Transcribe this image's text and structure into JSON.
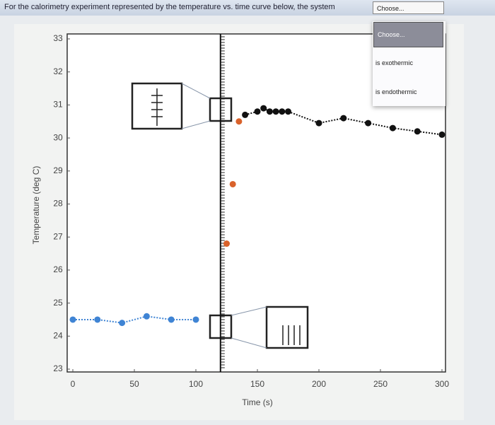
{
  "question": {
    "text": "For the calorimetry experiment represented by the temperature vs. time curve below, the system",
    "select": "Choose...",
    "options": [
      "Choose...",
      "is exothermic",
      "is endothermic"
    ]
  },
  "chart_data": {
    "type": "scatter",
    "x_label": "Time (s)",
    "y_label": "Temperature (deg C)",
    "xlim": [
      0,
      300
    ],
    "ylim": [
      23,
      33
    ],
    "xticks": [
      0,
      50,
      100,
      150,
      200,
      250,
      300
    ],
    "yticks": [
      23,
      24,
      25,
      26,
      27,
      28,
      29,
      30,
      31,
      32,
      33
    ],
    "vline": 120,
    "series": [
      {
        "color": "#3f84d4",
        "dotted": true,
        "x": [
          0,
          20,
          40,
          60,
          80,
          100
        ],
        "values": [
          24.5,
          24.5,
          24.4,
          24.6,
          24.5,
          24.5
        ]
      },
      {
        "color": "#d9622b",
        "dotted": false,
        "x": [
          125,
          130,
          135
        ],
        "values": [
          26.8,
          28.6,
          30.5
        ]
      },
      {
        "color": "#111111",
        "dotted": true,
        "x": [
          140,
          150,
          155,
          160,
          165,
          170,
          175,
          200,
          220,
          240,
          260,
          280,
          300
        ],
        "values": [
          30.7,
          30.8,
          30.9,
          30.8,
          30.8,
          30.8,
          30.8,
          30.45,
          30.6,
          30.45,
          30.3,
          30.2,
          30.1
        ]
      }
    ]
  }
}
